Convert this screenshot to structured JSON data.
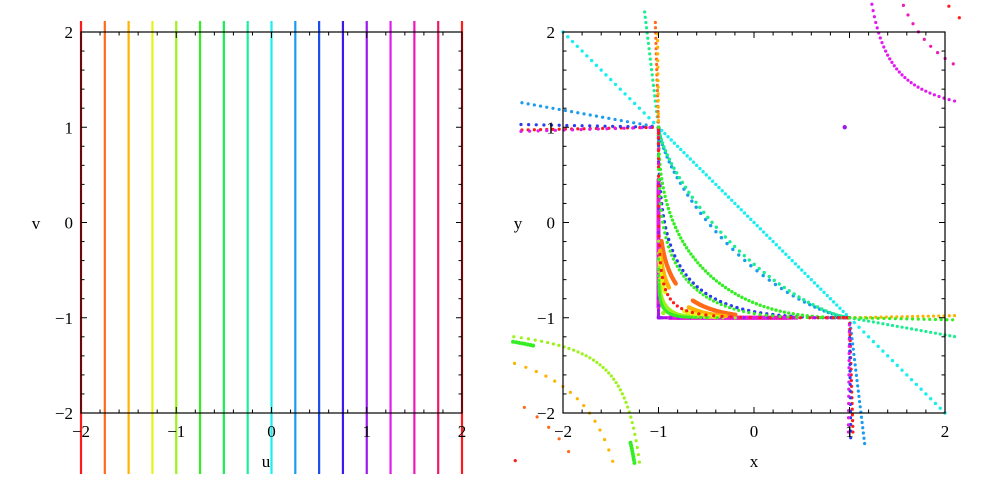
{
  "chart_data": [
    {
      "type": "line",
      "title": "",
      "xlabel": "u",
      "ylabel": "v",
      "xlim": [
        -2,
        2
      ],
      "ylim": [
        -2,
        2
      ],
      "xticks": [
        "-2",
        "-1",
        "0",
        "1",
        "2"
      ],
      "yticks": [
        "-2",
        "-1",
        "0",
        "1",
        "2"
      ],
      "grid": false,
      "description": "Vertical lines u = const for 17 values from -2 to 2 in steps of 0.25, colored by hue",
      "series": [
        {
          "name": "u=-2",
          "x": -2,
          "color": "#ff1a1a"
        },
        {
          "name": "u=-1.75",
          "x": -1.75,
          "color": "#ff6a1a"
        },
        {
          "name": "u=-1.5",
          "x": -1.5,
          "color": "#ffb300"
        },
        {
          "name": "u=-1.25",
          "x": -1.25,
          "color": "#e6f21a"
        },
        {
          "name": "u=-1",
          "x": -1,
          "color": "#9cf21a"
        },
        {
          "name": "u=-0.75",
          "x": -0.75,
          "color": "#33ee22"
        },
        {
          "name": "u=-0.5",
          "x": -0.5,
          "color": "#1aee55"
        },
        {
          "name": "u=-0.25",
          "x": -0.25,
          "color": "#1aeea0"
        },
        {
          "name": "u=0",
          "x": 0,
          "color": "#1aeeee"
        },
        {
          "name": "u=0.25",
          "x": 0.25,
          "color": "#1a9cee"
        },
        {
          "name": "u=0.5",
          "x": 0.5,
          "color": "#1a4cee"
        },
        {
          "name": "u=0.75",
          "x": 0.75,
          "color": "#3a1aee"
        },
        {
          "name": "u=1",
          "x": 1,
          "color": "#9a1aee"
        },
        {
          "name": "u=1.25",
          "x": 1.25,
          "color": "#e21aee"
        },
        {
          "name": "u=1.5",
          "x": 1.5,
          "color": "#ee1ab8"
        },
        {
          "name": "u=1.75",
          "x": 1.75,
          "color": "#ee1a66"
        },
        {
          "name": "u=2",
          "x": 2,
          "color": "#ff1a1a"
        }
      ]
    },
    {
      "type": "scatter",
      "title": "",
      "xlabel": "x",
      "ylabel": "y",
      "xlim": [
        -2,
        2
      ],
      "ylim": [
        -2,
        2
      ],
      "xticks": [
        "-2",
        "-1",
        "0",
        "1",
        "2"
      ],
      "yticks": [
        "-2",
        "-1",
        "0",
        "1",
        "2"
      ],
      "grid": false,
      "description": "Dotted images of the colored lines under a mapping; curves pass through singular points (-1,1) and (1,-1)",
      "singular_points": [
        [
          -1,
          1
        ],
        [
          1,
          -1
        ]
      ]
    }
  ],
  "left_plot": {
    "xlabel": "u",
    "ylabel": "v",
    "xticks": [
      {
        "value": -2,
        "label": "−2"
      },
      {
        "value": -1,
        "label": "−1"
      },
      {
        "value": 0,
        "label": "0"
      },
      {
        "value": 1,
        "label": "1"
      },
      {
        "value": 2,
        "label": "2"
      }
    ],
    "yticks": [
      {
        "value": -2,
        "label": "−2"
      },
      {
        "value": -1,
        "label": "−1"
      },
      {
        "value": 0,
        "label": "0"
      },
      {
        "value": 1,
        "label": "1"
      },
      {
        "value": 2,
        "label": "2"
      }
    ]
  },
  "right_plot": {
    "xlabel": "x",
    "ylabel": "y",
    "xticks": [
      {
        "value": -2,
        "label": "−2"
      },
      {
        "value": -1,
        "label": "−1"
      },
      {
        "value": 0,
        "label": "0"
      },
      {
        "value": 1,
        "label": "1"
      },
      {
        "value": 2,
        "label": "2"
      }
    ],
    "yticks": [
      {
        "value": -2,
        "label": "−2"
      },
      {
        "value": -1,
        "label": "−1"
      },
      {
        "value": 0,
        "label": "0"
      },
      {
        "value": 1,
        "label": "1"
      },
      {
        "value": 2,
        "label": "2"
      }
    ]
  }
}
